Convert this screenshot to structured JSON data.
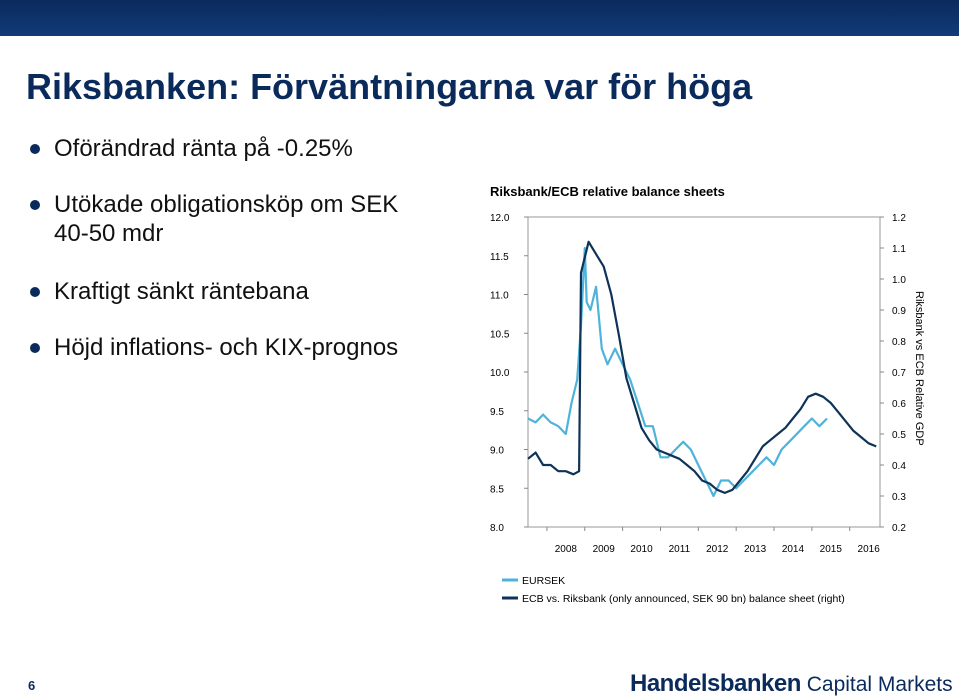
{
  "slide": {
    "title": "Riksbanken: Förväntningarna var för höga",
    "bullets": [
      "Oförändrad ränta på -0.25%",
      "Utökade obligationsköp om SEK 40-50 mdr",
      "Kraftigt sänkt räntebana",
      "Höjd inflations- och KIX-prognos"
    ],
    "page_number": "6",
    "logo": {
      "bold": "Handelsbanken",
      "light": " Capital Markets"
    }
  },
  "colors": {
    "header_bar": "#0a2a5c",
    "title": "#0a2a5c",
    "eursek": "#4fb3d9",
    "ecb": "#0f3358"
  },
  "chart_data": {
    "type": "line",
    "title": "Riksbank/ECB relative balance sheets",
    "xlabel": "",
    "ylabel_left": "",
    "ylabel_right": "Riksbank vs ECB Relative GDP",
    "x_ticks": [
      "2008",
      "2009",
      "2010",
      "2011",
      "2012",
      "2013",
      "2014",
      "2015",
      "2016"
    ],
    "xlim": [
      2007.5,
      2016.8
    ],
    "ylim_left": [
      8.0,
      12.0
    ],
    "ylim_right": [
      0.2,
      1.2
    ],
    "y_ticks_left": [
      "8.0",
      "8.5",
      "9.0",
      "9.5",
      "10.0",
      "10.5",
      "11.0",
      "11.5",
      "12.0"
    ],
    "y_ticks_right": [
      "0.2",
      "0.3",
      "0.4",
      "0.5",
      "0.6",
      "0.7",
      "0.8",
      "0.9",
      "1.0",
      "1.1",
      "1.2"
    ],
    "grid": false,
    "legend_position": "bottom-left",
    "series": [
      {
        "name": "EURSEK",
        "axis": "left",
        "color": "#4fb3d9",
        "x": [
          2007.5,
          2007.7,
          2007.9,
          2008.1,
          2008.3,
          2008.5,
          2008.65,
          2008.8,
          2008.9,
          2009.0,
          2009.05,
          2009.15,
          2009.3,
          2009.45,
          2009.6,
          2009.8,
          2010.0,
          2010.2,
          2010.4,
          2010.6,
          2010.8,
          2011.0,
          2011.2,
          2011.4,
          2011.6,
          2011.8,
          2012.0,
          2012.2,
          2012.4,
          2012.6,
          2012.8,
          2013.0,
          2013.2,
          2013.4,
          2013.6,
          2013.8,
          2014.0,
          2014.2,
          2014.4,
          2014.6,
          2014.8,
          2015.0,
          2015.2,
          2015.4
        ],
        "values": [
          9.4,
          9.35,
          9.45,
          9.35,
          9.3,
          9.2,
          9.6,
          9.9,
          10.6,
          11.6,
          10.9,
          10.8,
          11.1,
          10.3,
          10.1,
          10.3,
          10.1,
          9.9,
          9.6,
          9.3,
          9.3,
          8.9,
          8.9,
          9.0,
          9.1,
          9.0,
          8.8,
          8.6,
          8.4,
          8.6,
          8.6,
          8.5,
          8.6,
          8.7,
          8.8,
          8.9,
          8.8,
          9.0,
          9.1,
          9.2,
          9.3,
          9.4,
          9.3,
          9.4
        ]
      },
      {
        "name": "ECB vs. Riksbank (only announced, SEK 90 bn) balance sheet (right)",
        "axis": "right",
        "color": "#0f3358",
        "x": [
          2007.5,
          2007.7,
          2007.9,
          2008.1,
          2008.3,
          2008.5,
          2008.7,
          2008.85,
          2008.9,
          2009.1,
          2009.3,
          2009.5,
          2009.7,
          2009.9,
          2010.1,
          2010.3,
          2010.5,
          2010.7,
          2010.9,
          2011.1,
          2011.3,
          2011.5,
          2011.7,
          2011.9,
          2012.1,
          2012.3,
          2012.5,
          2012.7,
          2012.9,
          2013.1,
          2013.3,
          2013.5,
          2013.7,
          2013.9,
          2014.1,
          2014.3,
          2014.5,
          2014.7,
          2014.9,
          2015.1,
          2015.3,
          2015.5,
          2015.7,
          2015.9,
          2016.1,
          2016.3,
          2016.5,
          2016.7
        ],
        "values": [
          0.42,
          0.44,
          0.4,
          0.4,
          0.38,
          0.38,
          0.37,
          0.38,
          1.02,
          1.12,
          1.08,
          1.04,
          0.95,
          0.82,
          0.68,
          0.6,
          0.52,
          0.48,
          0.45,
          0.44,
          0.43,
          0.42,
          0.4,
          0.38,
          0.35,
          0.34,
          0.32,
          0.31,
          0.32,
          0.35,
          0.38,
          0.42,
          0.46,
          0.48,
          0.5,
          0.52,
          0.55,
          0.58,
          0.62,
          0.63,
          0.62,
          0.6,
          0.57,
          0.54,
          0.51,
          0.49,
          0.47,
          0.46
        ]
      }
    ]
  }
}
